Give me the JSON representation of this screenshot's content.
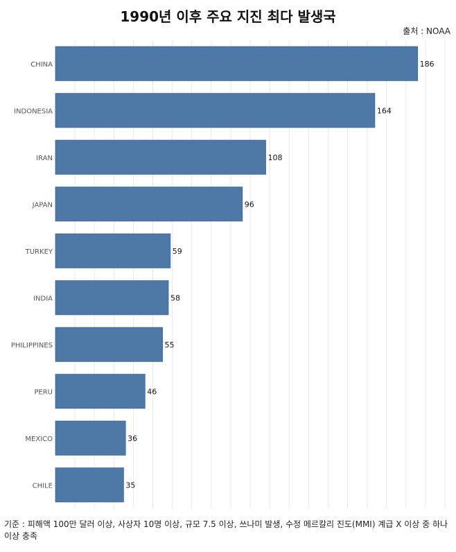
{
  "title": "1990년 이후 주요 지진 최다 발생국",
  "source": "출처 : NOAA",
  "footnote": "기준 : 피해액 100만 달러 이상, 사상자 10명 이상, 규모 7.5 이상, 쓰나미 발생, 수정 메르칼리 진도(MMI) 계급 X 이상 중 하나 이상 충족",
  "colors": {
    "bar": "#4e79a7",
    "bar_border": "#3d6390",
    "grid": "#e9e9e9"
  },
  "chart_data": {
    "type": "bar",
    "orientation": "horizontal",
    "categories": [
      "CHINA",
      "INDONESIA",
      "IRAN",
      "JAPAN",
      "TURKEY",
      "INDIA",
      "PHILIPPINES",
      "PERU",
      "MEXICO",
      "CHILE"
    ],
    "values": [
      186,
      164,
      108,
      96,
      59,
      58,
      55,
      46,
      36,
      35
    ],
    "value_labels": [
      "186",
      "164",
      "108",
      "96",
      "59",
      "58",
      "55",
      "46",
      "36",
      "35"
    ],
    "xlim": [
      0,
      200
    ],
    "grid": true,
    "legend": "none"
  }
}
